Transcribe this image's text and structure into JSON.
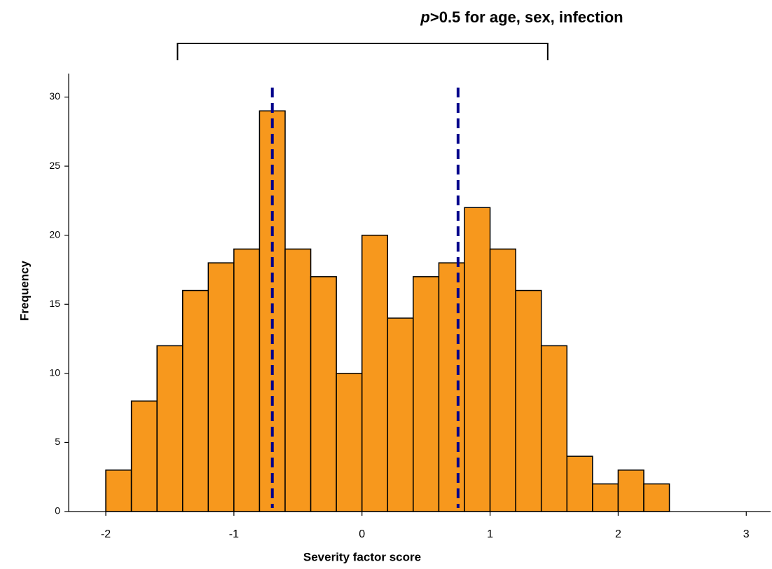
{
  "chart_data": {
    "type": "histogram",
    "annotation_parts": [
      "p",
      ">0.5 for age, sex, infection"
    ],
    "xlabel": "Severity factor score",
    "ylabel": "Frequency",
    "bins": [
      -2,
      -1.8,
      -1.6,
      -1.4,
      -1.2,
      -1,
      -0.8,
      -0.6,
      -0.4,
      -0.2,
      0,
      0.2,
      0.4,
      0.6,
      0.8,
      1,
      1.2,
      1.4,
      1.6,
      1.8,
      2,
      2.2,
      2.4
    ],
    "counts": [
      3,
      8,
      12,
      16,
      18,
      19,
      29,
      19,
      17,
      10,
      20,
      14,
      17,
      18,
      22,
      19,
      16,
      12,
      4,
      2,
      3,
      2
    ],
    "color": "#f7981d",
    "vlines": [
      -0.7,
      0.75
    ],
    "vline_color": "#00008b",
    "bracket": [
      -1.44,
      1.45
    ],
    "xlim": [
      -2.29,
      3.19
    ],
    "ylim": [
      0,
      31.7
    ],
    "xticks": [
      -2,
      -1,
      0,
      1,
      2,
      3
    ],
    "yticks": [
      0,
      5,
      10,
      15,
      20,
      25,
      30
    ],
    "grid": false
  }
}
